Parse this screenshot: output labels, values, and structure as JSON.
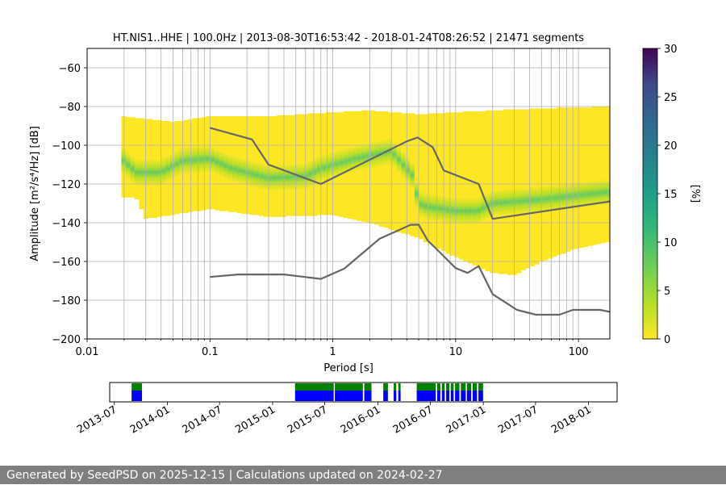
{
  "chart_data": [
    {
      "type": "heatmap",
      "title": "HT.NIS1..HHE | 100.0Hz | 2013-08-30T16:53:42 - 2018-01-24T08:26:52 | 21471 segments",
      "xlabel": "Period [s]",
      "ylabel": "Amplitude [m²/s⁴/Hz] [dB]",
      "x_scale": "log",
      "xlim": [
        0.01,
        180
      ],
      "ylim": [
        -200,
        -50
      ],
      "x_ticks": [
        {
          "v": 0.01,
          "label": "0.01"
        },
        {
          "v": 0.1,
          "label": "0.1"
        },
        {
          "v": 1,
          "label": "1"
        },
        {
          "v": 10,
          "label": "10"
        },
        {
          "v": 100,
          "label": "100"
        }
      ],
      "y_ticks": [
        {
          "v": -60,
          "label": "−60"
        },
        {
          "v": -80,
          "label": "−80"
        },
        {
          "v": -100,
          "label": "−100"
        },
        {
          "v": -120,
          "label": "−120"
        },
        {
          "v": -140,
          "label": "−140"
        },
        {
          "v": -160,
          "label": "−160"
        },
        {
          "v": -180,
          "label": "−180"
        },
        {
          "v": -200,
          "label": "−200"
        }
      ],
      "grid": true,
      "colorbar": {
        "label": "[%]",
        "range": [
          0,
          30
        ],
        "ticks": [
          "0",
          "5",
          "10",
          "15",
          "20",
          "25",
          "30"
        ],
        "colormap": "viridis"
      },
      "distribution": {
        "period_start": 0.019,
        "period_end": 180,
        "mode_curve": [
          [
            0.019,
            -107
          ],
          [
            0.025,
            -114
          ],
          [
            0.04,
            -114
          ],
          [
            0.06,
            -108
          ],
          [
            0.1,
            -107
          ],
          [
            0.15,
            -112
          ],
          [
            0.3,
            -117
          ],
          [
            0.6,
            -116
          ],
          [
            0.8,
            -112
          ],
          [
            1.5,
            -107
          ],
          [
            3,
            -103
          ],
          [
            4.5,
            -116
          ],
          [
            5,
            -130
          ],
          [
            6,
            -132
          ],
          [
            8,
            -133
          ],
          [
            10,
            -134
          ],
          [
            15,
            -134
          ],
          [
            20,
            -130
          ],
          [
            50,
            -128
          ],
          [
            180,
            -124
          ]
        ],
        "upper_edge": [
          [
            0.019,
            -85
          ],
          [
            0.05,
            -88
          ],
          [
            0.1,
            -85
          ],
          [
            0.3,
            -85
          ],
          [
            1,
            -83
          ],
          [
            2,
            -82
          ],
          [
            5,
            -84
          ],
          [
            10,
            -83
          ],
          [
            20,
            -82
          ],
          [
            50,
            -81
          ],
          [
            180,
            -80
          ]
        ],
        "lower_edge": [
          [
            0.019,
            -127
          ],
          [
            0.025,
            -127
          ],
          [
            0.03,
            -138
          ],
          [
            0.1,
            -133
          ],
          [
            0.3,
            -137
          ],
          [
            1,
            -136
          ],
          [
            2,
            -140
          ],
          [
            5,
            -148
          ],
          [
            10,
            -158
          ],
          [
            20,
            -166
          ],
          [
            30,
            -167
          ],
          [
            50,
            -160
          ],
          [
            100,
            -153
          ],
          [
            180,
            -150
          ]
        ]
      },
      "series": [
        {
          "values": [
            [
              0.1,
              -91
            ],
            [
              0.22,
              -97
            ],
            [
              0.3,
              -110
            ],
            [
              0.8,
              -120
            ],
            [
              4,
              -98
            ],
            [
              4.9,
              -96
            ],
            [
              6.5,
              -101
            ],
            [
              8,
              -113
            ],
            [
              15.4,
              -120
            ],
            [
              20,
              -138
            ],
            [
              180,
              -129
            ]
          ]
        },
        {
          "values": [
            [
              0.1,
              -168
            ],
            [
              0.17,
              -166.7
            ],
            [
              0.4,
              -166.7
            ],
            [
              0.8,
              -169
            ],
            [
              1.24,
              -163.7
            ],
            [
              2.4,
              -148.3
            ],
            [
              4.3,
              -141.1
            ],
            [
              5.0,
              -141
            ],
            [
              5.9,
              -149
            ],
            [
              7.1,
              -154
            ],
            [
              10,
              -163.4
            ],
            [
              12.5,
              -165.9
            ],
            [
              15.4,
              -162.4
            ],
            [
              20,
              -176.9
            ],
            [
              31.6,
              -185
            ],
            [
              45,
              -187.5
            ],
            [
              70,
              -187.5
            ],
            [
              90,
              -185
            ],
            [
              150,
              -185
            ],
            [
              180,
              -186
            ]
          ]
        }
      ]
    },
    {
      "type": "timeline",
      "x_ticks": [
        "2013-07",
        "2014-01",
        "2014-07",
        "2015-01",
        "2015-07",
        "2016-01",
        "2016-07",
        "2017-01",
        "2017-07",
        "2018-01"
      ],
      "xlim": [
        "2013-06-15",
        "2018-04-10"
      ],
      "colors": {
        "top": "#008000",
        "bottom": "#0000ff"
      },
      "coverage": [
        [
          "2013-08-30",
          "2013-10-05"
        ],
        [
          "2015-03-20",
          "2015-08-01"
        ],
        [
          "2015-08-05",
          "2015-11-10"
        ],
        [
          "2015-11-15",
          "2015-12-10"
        ],
        [
          "2016-01-20",
          "2016-02-05"
        ],
        [
          "2016-02-25",
          "2016-03-05"
        ],
        [
          "2016-03-12",
          "2016-03-20"
        ],
        [
          "2016-05-15",
          "2016-07-20"
        ],
        [
          "2016-07-25",
          "2016-08-05"
        ],
        [
          "2016-08-10",
          "2016-08-20"
        ],
        [
          "2016-08-25",
          "2016-09-05"
        ],
        [
          "2016-09-10",
          "2016-09-20"
        ],
        [
          "2016-09-25",
          "2016-10-10"
        ],
        [
          "2016-10-15",
          "2016-11-01"
        ],
        [
          "2016-11-05",
          "2016-11-20"
        ],
        [
          "2016-11-25",
          "2016-12-10"
        ],
        [
          "2016-12-15",
          "2016-12-31"
        ]
      ]
    }
  ],
  "footer": {
    "text": "Generated by SeedPSD on 2025-12-15 | Calculations updated on 2024-02-27"
  }
}
